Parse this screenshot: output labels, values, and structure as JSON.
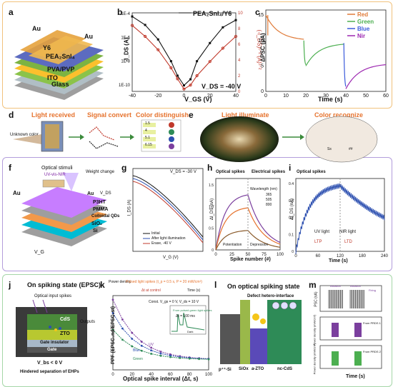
{
  "panel_labels": [
    "a",
    "b",
    "c",
    "d",
    "e",
    "f",
    "g",
    "h",
    "i",
    "j",
    "k",
    "l",
    "m"
  ],
  "a": {
    "layers": [
      "Au",
      "Y6",
      "PEA₂SnI₄",
      "PVA/PVP",
      "ITO",
      "Glass"
    ],
    "callouts": [
      "Au",
      "Au"
    ]
  },
  "b": {
    "legend": "PEA₂SnI₄/Y6",
    "ylabel_left": "-I_DS (A)",
    "ylabel_right": "(-I_DS)¹ᐟ² (A)¹ᐟ²",
    "xlabel": "V_GS (V)",
    "annotation": "V_DS = -40 V",
    "x_ticks": [
      "-40",
      "-20",
      "0",
      "20",
      "40"
    ],
    "y_left_ticks": [
      "1E-4",
      "1E-6",
      "1E-8",
      "1E-10"
    ],
    "y_right_ticks": [
      "0",
      "2",
      "4",
      "6",
      "8",
      "10"
    ],
    "chart_data": {
      "type": "line",
      "x": [
        -40,
        -30,
        -20,
        -10,
        -5,
        0,
        5,
        10,
        20,
        30,
        40
      ],
      "series": [
        {
          "name": "log",
          "values": [
            -4.3,
            -5.0,
            -6.2,
            -8.0,
            -9.2,
            -10.0,
            -9.5,
            -8.0,
            -6.5,
            -5.2,
            -4.6
          ]
        },
        {
          "name": "sqrt",
          "values": [
            8.4,
            7.0,
            5.3,
            3.0,
            1.6,
            0.3,
            0.8,
            2.0,
            3.8,
            5.5,
            7.0
          ]
        }
      ]
    }
  },
  "c": {
    "ylabel": "ΔPSC (μA)",
    "xlabel": "Time (s)",
    "x_ticks": [
      "0",
      "10",
      "20",
      "30",
      "40",
      "50",
      "60"
    ],
    "y_ticks": [
      "0",
      "5",
      "10",
      "15"
    ],
    "legend": [
      "Red",
      "Green",
      "Blue",
      "Nir"
    ],
    "colors": {
      "Red": "#e07b39",
      "Green": "#4caf50",
      "Blue": "#3b5bdb",
      "Nir": "#9c27b0"
    }
  },
  "d": {
    "titles": [
      "Light received",
      "Signal convert",
      "Color distinguish"
    ],
    "unknown_color": "Unknown color",
    "values": [
      "1.5",
      "4",
      "5.1",
      "6.15"
    ]
  },
  "e": {
    "titles": [
      "Light illuminate",
      "Color recognize"
    ],
    "labels": [
      "Ss",
      "##"
    ]
  },
  "f": {
    "stimuli": "Optical stimuli",
    "band": "UV-vis-NIR",
    "weight": "Weight change",
    "layers": [
      "Au",
      "P3HT",
      "PMMA",
      "Colloidal QDs",
      "SiO₂",
      "Si"
    ],
    "terminals": [
      "V_DS",
      "V_G"
    ],
    "left_au": "Au"
  },
  "g": {
    "annotation": "V_DS = -30 V",
    "ylabel": "I_DS (A)",
    "xlabel": "V_G (V)",
    "legend": [
      "Initial",
      "After light illumination",
      "Erase, -40 V"
    ]
  },
  "h": {
    "optical": "Optical spikes",
    "electrical": "Electrical spikes",
    "wavelength": "Wavelength (nm)",
    "wl_values": [
      "365",
      "505",
      "800"
    ],
    "phases": [
      "Potentiation",
      "Depression"
    ],
    "xlabel": "Spike number (#)",
    "ylabel": "ΔI_DS (nA)",
    "x_ticks": [
      "0",
      "25",
      "50",
      "75",
      "100"
    ],
    "y_ticks": [
      "0",
      "0.5",
      "1.0",
      "1.5"
    ]
  },
  "i": {
    "optical": "Optical spikes",
    "phases": [
      "UV light",
      "NIR light"
    ],
    "regions": [
      "LTP",
      "LTD"
    ],
    "xlabel": "Time (s)",
    "ylabel": "ΔI_DS (nA)",
    "x_ticks": [
      "0",
      "60",
      "120",
      "180",
      "240"
    ],
    "y_ticks": [
      "0",
      "0.1",
      "0.2",
      "0.3",
      "0.4"
    ]
  },
  "j": {
    "title": "On spiking state (EPSC)",
    "input": "Optical input spikes",
    "layers": [
      "CdS",
      "ZTO",
      "Gate insulator",
      "Gate"
    ],
    "output": "Outputs",
    "bias": "V_bs < 0 V",
    "hindered": "Hindered separation of EHPs"
  },
  "k": {
    "top": [
      "Power density",
      "Pulsed light spikes (t_p = 0.5 s, P = 20 mW/cm²)",
      "Δt at control",
      "Time (s)"
    ],
    "cond": "Const. V_gs = 0 V, V_ds = 10 V",
    "inset": [
      "From pulsed green light spikes",
      "Δt = 100 ms",
      "Dark",
      "PSC (nA)"
    ],
    "ylabel": "PPF (EPSC₂nd/EPSC₁st)",
    "xlabel": "Optical spike interval (Δt, s)",
    "series": [
      "UV",
      "Blue",
      "Green"
    ],
    "x_ticks": [
      "0",
      "20",
      "40",
      "60",
      "80",
      "100"
    ]
  },
  "l": {
    "title": "On optical spiking state",
    "defect": "Defect hetero-interface",
    "layers": [
      "p⁺⁺-Si",
      "SiOx",
      "a-ZTO",
      "nc-CdS"
    ]
  },
  "m": {
    "labels": [
      "Initiation",
      "Initiation",
      "Firing"
    ],
    "series": [
      "From PRDS 1",
      "From PRDS 2"
    ],
    "ylabel": [
      "PSC (nA)",
      "Power density (mW/cm²)",
      "Power density (mW/cm²)"
    ],
    "xlabel": "Time (s)"
  }
}
